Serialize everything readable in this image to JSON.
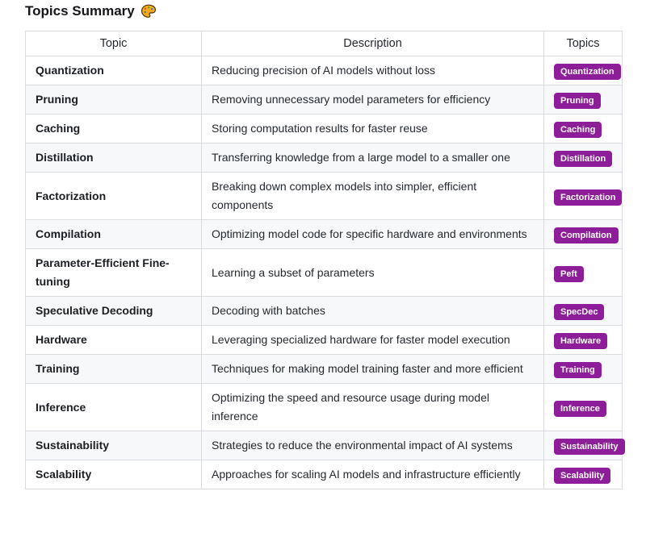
{
  "page": {
    "title": "Topics Summary",
    "title_icon": "palette-icon"
  },
  "colors": {
    "badge_bg": "#8e1d9a",
    "badge_text": "#ffffff",
    "row_stripe": "#f7f8f9",
    "table_border": "#d9dde2"
  },
  "table": {
    "headers": [
      "Topic",
      "Description",
      "Topics"
    ],
    "rows": [
      {
        "topic": "Quantization",
        "description": "Reducing precision of AI models without loss",
        "badge": "Quantization"
      },
      {
        "topic": "Pruning",
        "description": "Removing unnecessary model parameters for efficiency",
        "badge": "Pruning"
      },
      {
        "topic": "Caching",
        "description": "Storing computation results for faster reuse",
        "badge": "Caching"
      },
      {
        "topic": "Distillation",
        "description": "Transferring knowledge from a large model to a smaller one",
        "badge": "Distillation"
      },
      {
        "topic": "Factorization",
        "description": "Breaking down complex models into simpler, efficient components",
        "badge": "Factorization"
      },
      {
        "topic": "Compilation",
        "description": "Optimizing model code for specific hardware and environments",
        "badge": "Compilation"
      },
      {
        "topic": "Parameter-Efficient Fine-tuning",
        "description": "Learning a subset of parameters",
        "badge": "Peft"
      },
      {
        "topic": "Speculative Decoding",
        "description": "Decoding with batches",
        "badge": "SpecDec"
      },
      {
        "topic": "Hardware",
        "description": "Leveraging specialized hardware for faster model execution",
        "badge": "Hardware"
      },
      {
        "topic": "Training",
        "description": "Techniques for making model training faster and more efficient",
        "badge": "Training"
      },
      {
        "topic": "Inference",
        "description": "Optimizing the speed and resource usage during model inference",
        "badge": "Inference"
      },
      {
        "topic": "Sustainability",
        "description": "Strategies to reduce the environmental impact of AI systems",
        "badge": "Sustainability"
      },
      {
        "topic": "Scalability",
        "description": "Approaches for scaling AI models and infrastructure efficiently",
        "badge": "Scalability"
      }
    ]
  }
}
